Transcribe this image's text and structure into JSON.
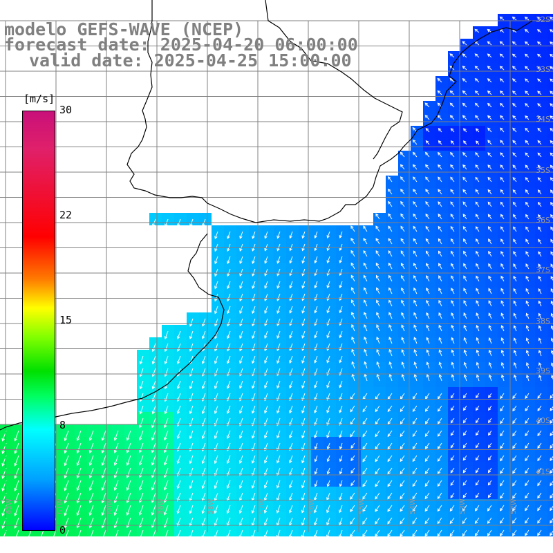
{
  "header": {
    "line1": "modelo GEFS-WAVE (NCEP)",
    "line2": "forecast date: 2025-04-20 06:00:00",
    "line3": "valid date: 2025-04-25 15:00:00"
  },
  "colorbar": {
    "unit": "[m/s]",
    "ticks": [
      "30",
      "22",
      "15",
      "8",
      "0"
    ],
    "range": [
      0,
      30
    ]
  },
  "lat_labels": [
    "32S",
    "33S",
    "34S",
    "35S",
    "36S",
    "37S",
    "38S",
    "39S",
    "40S",
    "41S"
  ],
  "lon_labels": [
    "62W",
    "61W",
    "60W",
    "59W",
    "58W",
    "57W",
    "56W",
    "55W",
    "54W",
    "53W",
    "52W"
  ],
  "colors": {
    "land": "#ffffff",
    "grid": "#808080",
    "arrow": "#ffffff",
    "coast": "#000000"
  }
}
